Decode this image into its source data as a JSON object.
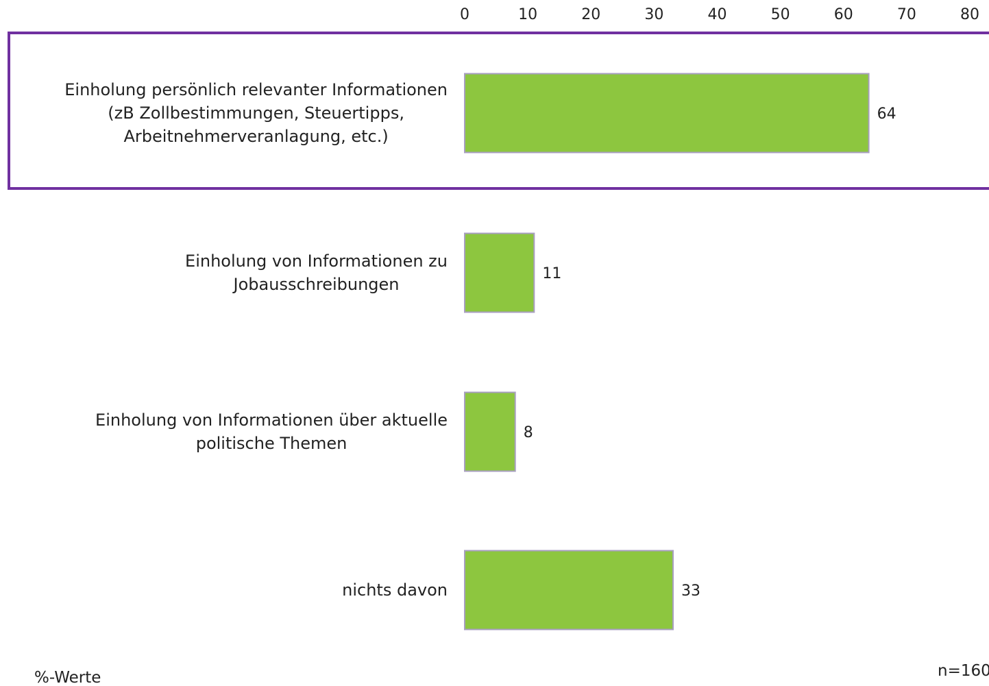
{
  "chart_data": {
    "type": "barh",
    "categories": [
      "Einholung persönlich relevanter Informationen\n(zB Zollbestimmungen, Steuertipps,\nArbeitnehmerveranlagung, etc.)",
      "Einholung von Informationen zu\nJobausschreibungen",
      "Einholung von Informationen über aktuelle\npolitische Themen",
      "nichts davon"
    ],
    "values": [
      64,
      11,
      8,
      33
    ],
    "color": "#8dc63f",
    "xlim": [
      0,
      80
    ],
    "xticks": [
      0,
      10,
      20,
      30,
      40,
      50,
      60,
      70,
      80
    ],
    "grid": false,
    "note": "%-Werte",
    "sample_size": "n=160"
  }
}
